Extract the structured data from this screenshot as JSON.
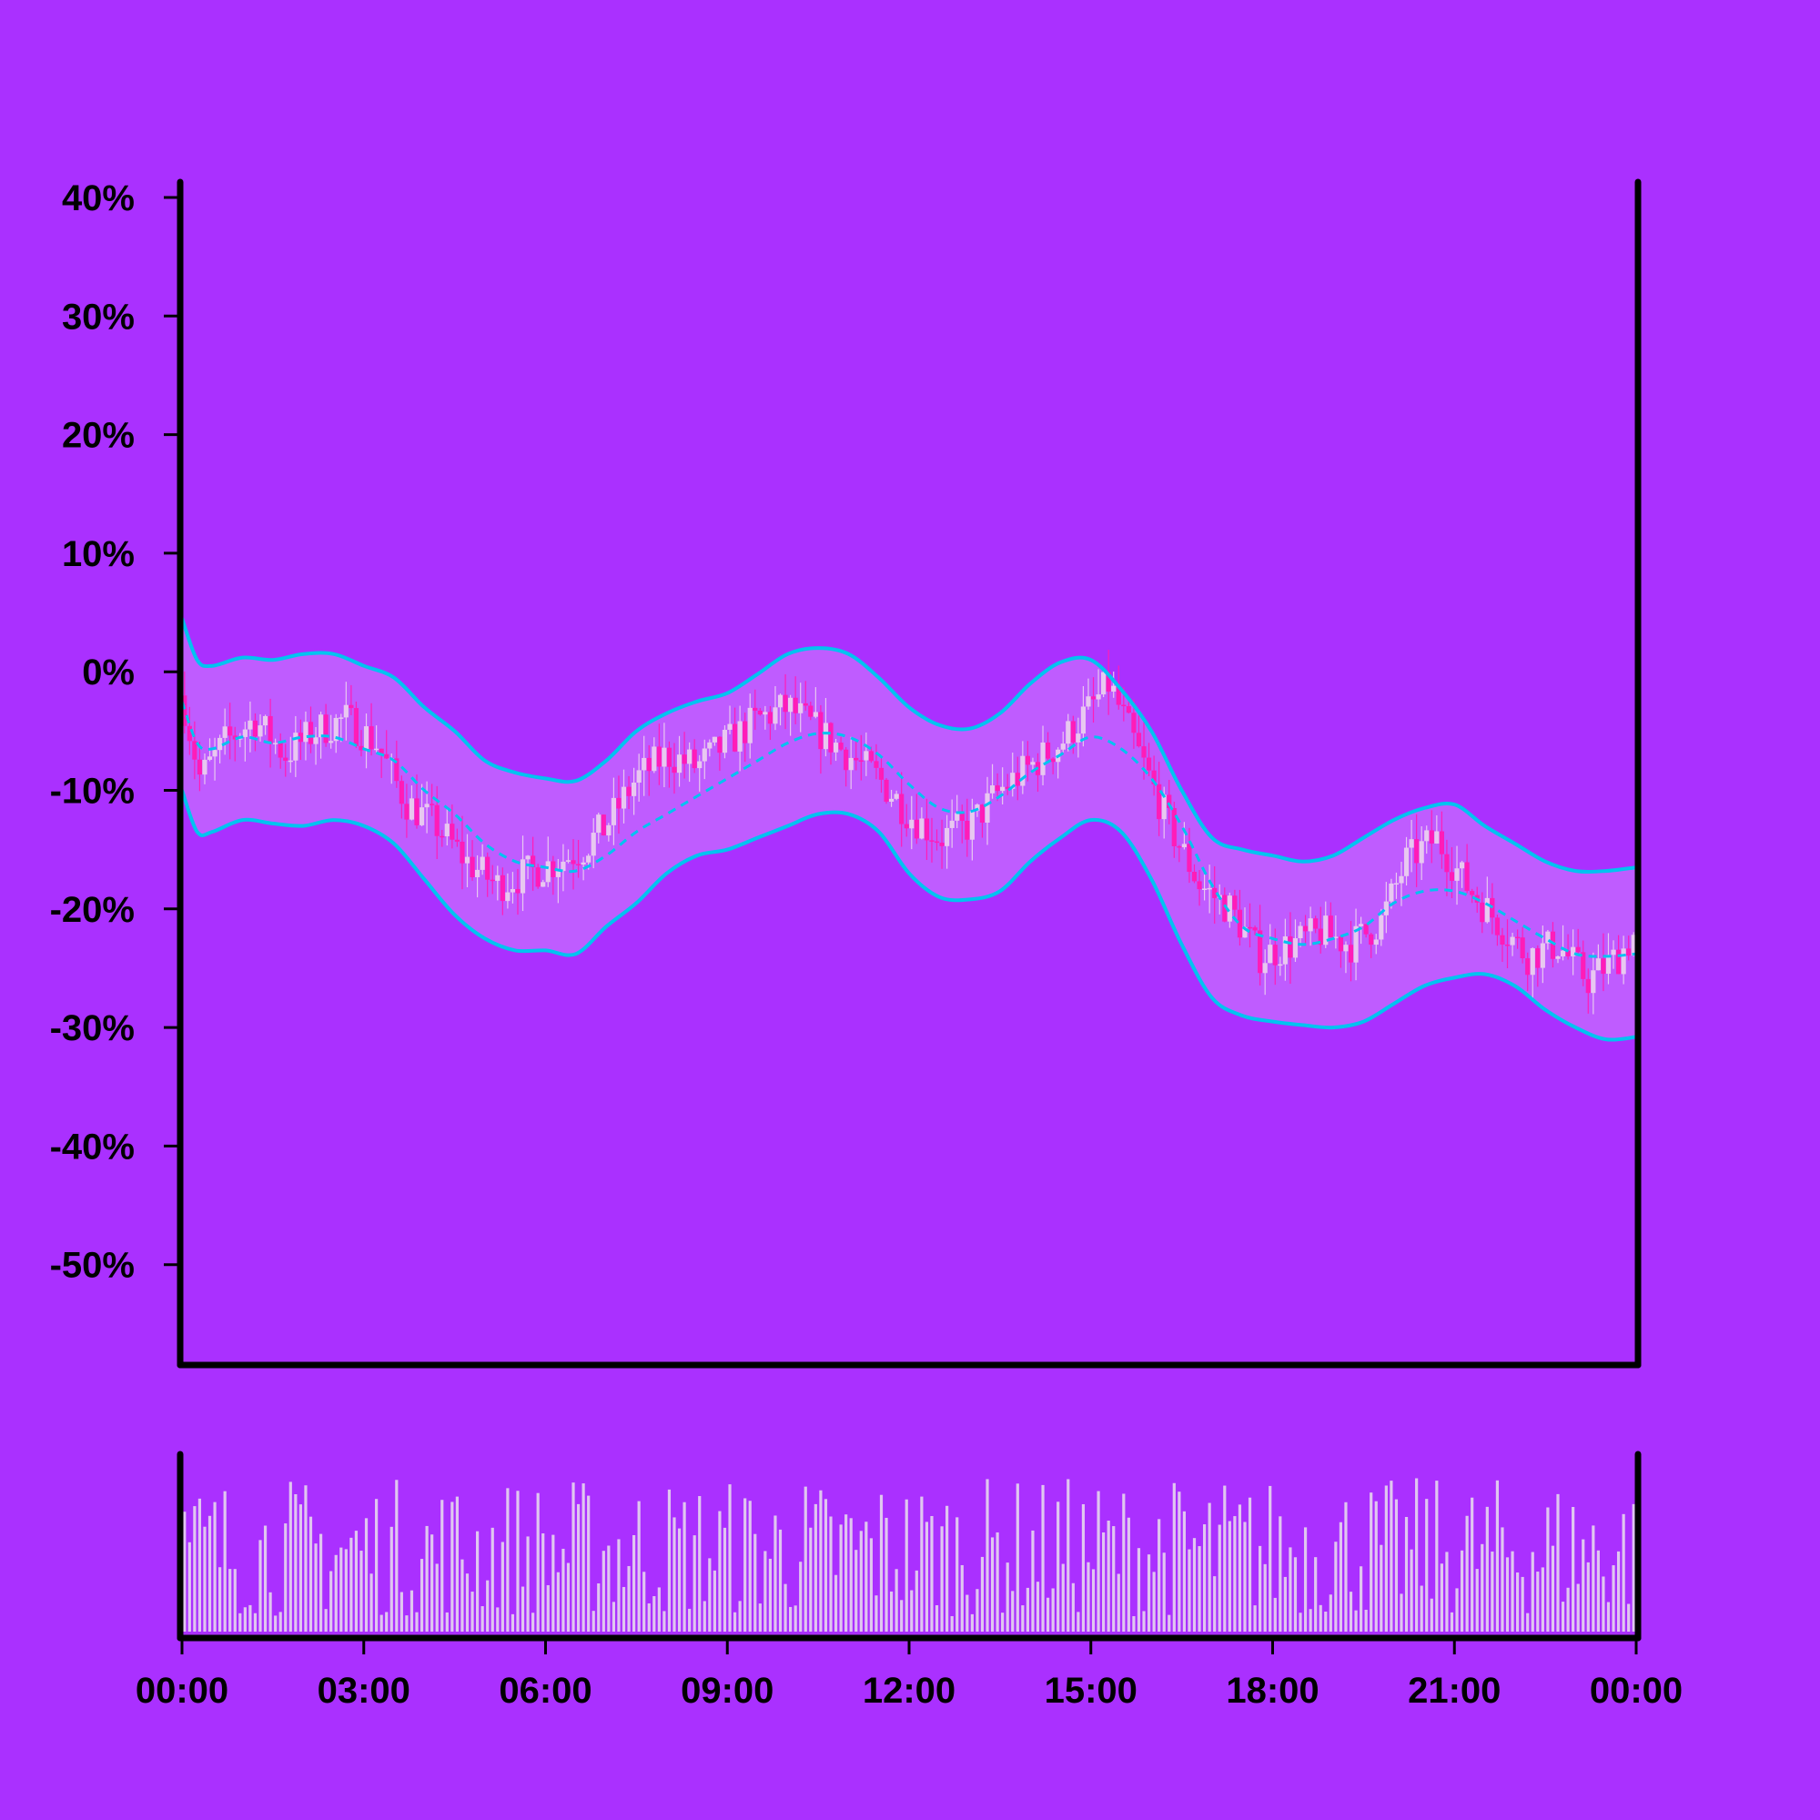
{
  "colors": {
    "background": "#aa30ff",
    "axis": "#000000",
    "band_line": "#00c3f0",
    "band_fill": "#bf5cff",
    "candle_up": "#e8c8f0",
    "candle_down": "#ff1cb8",
    "volume_bar": "#e0c6f0"
  },
  "chart_data": [
    {
      "type": "candlestick",
      "title": "",
      "xlabel": "",
      "ylabel": "",
      "ylim": [
        -58,
        40
      ],
      "y_ticks": [
        "40%",
        "30%",
        "20%",
        "10%",
        "0%",
        "-10%",
        "-20%",
        "-30%",
        "-40%",
        "-50%"
      ],
      "y_tick_values": [
        40,
        30,
        20,
        10,
        0,
        -10,
        -20,
        -30,
        -40,
        -50
      ],
      "x_range_hours": [
        0,
        24
      ],
      "grid": false,
      "legend": "none",
      "candle_interval_minutes": 5,
      "close_path": {
        "hours": [
          0,
          0.3,
          0.7,
          1.2,
          1.7,
          2.2,
          2.7,
          3.2,
          3.7,
          4.2,
          4.7,
          5.2,
          5.7,
          6.2,
          6.6,
          7.0,
          7.5,
          8.0,
          8.5,
          9.0,
          9.5,
          10.0,
          10.5,
          11.0,
          11.5,
          12.0,
          12.5,
          13.0,
          13.5,
          14.0,
          14.5,
          15.0,
          15.3,
          15.8,
          16.3,
          16.8,
          17.3,
          17.8,
          18.3,
          18.8,
          19.3,
          19.8,
          20.2,
          20.7,
          21.2,
          21.7,
          22.2,
          22.7,
          23.2,
          23.7,
          24.0
        ],
        "values": [
          -2,
          -9,
          -6,
          -4,
          -7,
          -5,
          -4,
          -6,
          -11,
          -13,
          -16,
          -18,
          -17,
          -16,
          -15,
          -13,
          -9,
          -7,
          -8,
          -6,
          -4,
          -3,
          -5,
          -7,
          -9,
          -12,
          -14,
          -13,
          -10,
          -8,
          -6,
          -3,
          -1,
          -7,
          -13,
          -18,
          -20,
          -24,
          -23,
          -22,
          -23,
          -21,
          -16,
          -14,
          -18,
          -21,
          -24,
          -23,
          -26,
          -24,
          -22
        ]
      },
      "series": [
        {
          "name": "",
          "role": "upper band",
          "style": "solid",
          "hours": [
            0,
            0.25,
            0.5,
            1,
            1.5,
            2,
            2.5,
            3,
            3.5,
            4,
            4.5,
            5,
            5.5,
            6,
            6.5,
            7,
            7.5,
            8,
            8.5,
            9,
            9.5,
            10,
            10.5,
            11,
            11.5,
            12,
            12.5,
            13,
            13.5,
            14,
            14.5,
            15,
            15.5,
            16,
            16.5,
            17,
            17.5,
            18,
            18.5,
            19,
            19.5,
            20,
            20.5,
            21,
            21.5,
            22,
            22.5,
            23,
            23.5,
            24
          ],
          "values": [
            4.5,
            1.0,
            0.5,
            1.2,
            1.0,
            1.5,
            1.5,
            0.5,
            -0.5,
            -3.0,
            -5.0,
            -7.5,
            -8.5,
            -9.0,
            -9.2,
            -7.5,
            -5.0,
            -3.5,
            -2.5,
            -1.8,
            -0.2,
            1.5,
            2.0,
            1.5,
            -0.5,
            -3.0,
            -4.5,
            -4.8,
            -3.5,
            -1.0,
            0.8,
            1.0,
            -1.5,
            -5.0,
            -10.0,
            -14.0,
            -15.0,
            -15.5,
            -16.0,
            -15.5,
            -14.0,
            -12.5,
            -11.5,
            -11.2,
            -13.0,
            -14.5,
            -16.0,
            -16.8,
            -16.8,
            -16.5
          ]
        },
        {
          "name": "",
          "role": "middle band",
          "style": "dashed",
          "hours": [
            0,
            0.25,
            0.5,
            1,
            1.5,
            2,
            2.5,
            3,
            3.5,
            4,
            4.5,
            5,
            5.5,
            6,
            6.5,
            7,
            7.5,
            8,
            8.5,
            9,
            9.5,
            10,
            10.5,
            11,
            11.5,
            12,
            12.5,
            13,
            13.5,
            14,
            14.5,
            15,
            15.5,
            16,
            16.5,
            17,
            17.5,
            18,
            18.5,
            19,
            19.5,
            20,
            20.5,
            21,
            21.5,
            22,
            22.5,
            23,
            23.5,
            24
          ],
          "values": [
            -2.5,
            -6.0,
            -6.5,
            -5.5,
            -6.0,
            -5.5,
            -5.5,
            -6.5,
            -7.5,
            -10.0,
            -12.0,
            -14.5,
            -16.0,
            -16.5,
            -16.8,
            -15.5,
            -13.5,
            -12.0,
            -10.5,
            -9.0,
            -7.5,
            -6.0,
            -5.2,
            -5.5,
            -7.0,
            -9.5,
            -11.5,
            -11.8,
            -10.5,
            -8.5,
            -7.0,
            -5.5,
            -6.5,
            -9.0,
            -13.0,
            -18.0,
            -21.5,
            -22.5,
            -23.0,
            -22.5,
            -21.5,
            -19.5,
            -18.5,
            -18.5,
            -19.5,
            -21.0,
            -22.5,
            -23.8,
            -24.0,
            -23.8
          ]
        },
        {
          "name": "",
          "role": "lower band",
          "style": "solid",
          "hours": [
            0,
            0.25,
            0.5,
            1,
            1.5,
            2,
            2.5,
            3,
            3.5,
            4,
            4.5,
            5,
            5.5,
            6,
            6.5,
            7,
            7.5,
            8,
            8.5,
            9,
            9.5,
            10,
            10.5,
            11,
            11.5,
            12,
            12.5,
            13,
            13.5,
            14,
            14.5,
            15,
            15.5,
            16,
            16.5,
            17,
            17.5,
            18,
            18.5,
            19,
            19.5,
            20,
            20.5,
            21,
            21.5,
            22,
            22.5,
            23,
            23.5,
            24
          ],
          "values": [
            -10.0,
            -13.5,
            -13.5,
            -12.5,
            -12.8,
            -13.0,
            -12.5,
            -13.0,
            -14.5,
            -17.5,
            -20.5,
            -22.5,
            -23.5,
            -23.5,
            -23.8,
            -21.5,
            -19.5,
            -17.0,
            -15.5,
            -15.0,
            -14.0,
            -13.0,
            -12.0,
            -12.0,
            -13.5,
            -17.0,
            -19.0,
            -19.2,
            -18.5,
            -16.0,
            -14.0,
            -12.5,
            -13.5,
            -17.5,
            -23.0,
            -27.5,
            -29.0,
            -29.5,
            -29.8,
            -30.0,
            -29.5,
            -28.0,
            -26.5,
            -25.8,
            -25.5,
            -26.5,
            -28.5,
            -30.0,
            -31.0,
            -30.8
          ]
        }
      ]
    },
    {
      "type": "bar",
      "title": "",
      "xlabel": "",
      "ylabel": "",
      "role": "volume",
      "x_range_hours": [
        0,
        24
      ],
      "bar_interval_minutes": 5,
      "value_range": [
        0.1,
        1.0
      ],
      "x_ticks": [
        "00:00",
        "03:00",
        "06:00",
        "09:00",
        "12:00",
        "15:00",
        "18:00",
        "21:00",
        "00:00"
      ],
      "x_tick_hours": [
        0,
        3,
        6,
        9,
        12,
        15,
        18,
        21,
        24
      ]
    }
  ]
}
